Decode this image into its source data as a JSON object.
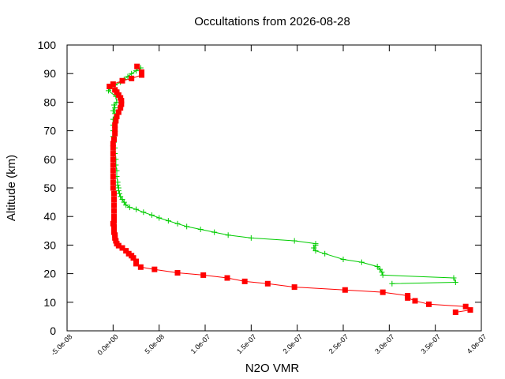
{
  "chart_data": {
    "type": "line",
    "title": "Occultations from 2026-08-28",
    "xlabel": "N2O VMR",
    "ylabel": "Altitude (km)",
    "xlim": [
      -5e-08,
      4e-07
    ],
    "ylim": [
      0,
      100
    ],
    "grid": false,
    "legend": "none",
    "x_ticks": [
      {
        "value": -5e-08,
        "label": "-5.0e-08"
      },
      {
        "value": 0,
        "label": "0.0e+00"
      },
      {
        "value": 5e-08,
        "label": "5.0e-08"
      },
      {
        "value": 1e-07,
        "label": "1.0e-07"
      },
      {
        "value": 1.5e-07,
        "label": "1.5e-07"
      },
      {
        "value": 2e-07,
        "label": "2.0e-07"
      },
      {
        "value": 2.5e-07,
        "label": "2.5e-07"
      },
      {
        "value": 3e-07,
        "label": "3.0e-07"
      },
      {
        "value": 3.5e-07,
        "label": "3.5e-07"
      },
      {
        "value": 4e-07,
        "label": "4.0e-07"
      }
    ],
    "y_ticks": [
      {
        "value": 0,
        "label": "0"
      },
      {
        "value": 10,
        "label": "10"
      },
      {
        "value": 20,
        "label": "20"
      },
      {
        "value": 30,
        "label": "30"
      },
      {
        "value": 40,
        "label": "40"
      },
      {
        "value": 50,
        "label": "50"
      },
      {
        "value": 60,
        "label": "60"
      },
      {
        "value": 70,
        "label": "70"
      },
      {
        "value": 80,
        "label": "80"
      },
      {
        "value": 90,
        "label": "90"
      },
      {
        "value": 100,
        "label": "100"
      }
    ],
    "series": [
      {
        "color": "#00cc00",
        "marker": "plus",
        "points": [
          [
            3.03e-07,
            16.5
          ],
          [
            3.72e-07,
            17.0
          ],
          [
            3.7e-07,
            18.5
          ],
          [
            2.93e-07,
            19.5
          ],
          [
            2.92e-07,
            20.5
          ],
          [
            2.9e-07,
            21.5
          ],
          [
            2.87e-07,
            22.5
          ],
          [
            2.7e-07,
            24.0
          ],
          [
            2.5e-07,
            25.0
          ],
          [
            2.3e-07,
            27.0
          ],
          [
            2.2e-07,
            28.0
          ],
          [
            2.18e-07,
            29.0
          ],
          [
            2.2e-07,
            30.0
          ],
          [
            2.2e-07,
            30.5
          ],
          [
            1.97e-07,
            31.5
          ],
          [
            1.5e-07,
            32.5
          ],
          [
            1.25e-07,
            33.5
          ],
          [
            1.1e-07,
            34.5
          ],
          [
            9.5e-08,
            35.5
          ],
          [
            8e-08,
            36.5
          ],
          [
            7e-08,
            37.5
          ],
          [
            6e-08,
            38.5
          ],
          [
            5e-08,
            39.5
          ],
          [
            4.2e-08,
            40.5
          ],
          [
            3.3e-08,
            41.5
          ],
          [
            2.5e-08,
            42.5
          ],
          [
            1.8e-08,
            43.2
          ],
          [
            1.4e-08,
            44.0
          ],
          [
            1.2e-08,
            45.0
          ],
          [
            1e-08,
            46.0
          ],
          [
            8e-09,
            47.0
          ],
          [
            7e-09,
            48.0
          ],
          [
            6e-09,
            49.0
          ],
          [
            6e-09,
            50.0
          ],
          [
            5e-09,
            51.0
          ],
          [
            5e-09,
            52.0
          ],
          [
            4e-09,
            54.0
          ],
          [
            4e-09,
            56.0
          ],
          [
            3e-09,
            58.0
          ],
          [
            3e-09,
            60.0
          ],
          [
            2e-09,
            62.0
          ],
          [
            2e-09,
            64.0
          ],
          [
            1e-09,
            66.0
          ],
          [
            0,
            68.0
          ],
          [
            0,
            70.0
          ],
          [
            0,
            72.0
          ],
          [
            0,
            74.0
          ],
          [
            2e-09,
            76.0
          ],
          [
            0,
            77.0
          ],
          [
            2e-09,
            78.0
          ],
          [
            1e-09,
            79.0
          ],
          [
            4e-09,
            80.0
          ],
          [
            3e-09,
            82.0
          ],
          [
            -5e-09,
            84.0
          ],
          [
            -3e-09,
            85.0
          ],
          [
            2e-09,
            86.0
          ],
          [
            8e-09,
            87.0
          ],
          [
            1.2e-08,
            88.0
          ],
          [
            1.6e-08,
            89.0
          ],
          [
            2e-08,
            90.0
          ],
          [
            2.5e-08,
            91.0
          ],
          [
            3e-08,
            92.0
          ]
        ]
      },
      {
        "color": "#ff0000",
        "marker": "square",
        "points": [
          [
            3.72e-07,
            6.5
          ],
          [
            3.88e-07,
            7.3
          ],
          [
            3.83e-07,
            8.5
          ],
          [
            3.43e-07,
            9.3
          ],
          [
            3.28e-07,
            10.5
          ],
          [
            3.2e-07,
            11.5
          ],
          [
            3.2e-07,
            12.3
          ],
          [
            2.93e-07,
            13.5
          ],
          [
            2.52e-07,
            14.3
          ],
          [
            1.97e-07,
            15.3
          ],
          [
            1.68e-07,
            16.5
          ],
          [
            1.43e-07,
            17.3
          ],
          [
            1.24e-07,
            18.5
          ],
          [
            9.8e-08,
            19.5
          ],
          [
            7e-08,
            20.3
          ],
          [
            4.5e-08,
            21.5
          ],
          [
            3e-08,
            22.3
          ],
          [
            2.5e-08,
            23.5
          ],
          [
            2.5e-08,
            24.3
          ],
          [
            2.2e-08,
            25.5
          ],
          [
            2e-08,
            26.3
          ],
          [
            1.7e-08,
            27.0
          ],
          [
            1.4e-08,
            28.0
          ],
          [
            1e-08,
            29.0
          ],
          [
            6e-09,
            29.8
          ],
          [
            4e-09,
            30.5
          ],
          [
            3e-09,
            31.5
          ],
          [
            2e-09,
            32.5
          ],
          [
            2e-09,
            33.5
          ],
          [
            1e-09,
            34.5
          ],
          [
            1e-09,
            35.5
          ],
          [
            1e-09,
            36.5
          ],
          [
            0,
            37.5
          ],
          [
            1e-09,
            38.5
          ],
          [
            1e-09,
            40.0
          ],
          [
            1e-09,
            42.0
          ],
          [
            1e-09,
            44.0
          ],
          [
            1e-09,
            46.0
          ],
          [
            1e-09,
            48.0
          ],
          [
            0,
            50.0
          ],
          [
            0,
            52.0
          ],
          [
            0,
            54.0
          ],
          [
            0,
            56.0
          ],
          [
            0,
            58.0
          ],
          [
            0,
            60.0
          ],
          [
            0,
            62.0
          ],
          [
            0,
            64.0
          ],
          [
            0,
            65.5
          ],
          [
            1e-09,
            67.0
          ],
          [
            2e-09,
            69.0
          ],
          [
            2e-09,
            70.5
          ],
          [
            2e-09,
            72.0
          ],
          [
            3e-09,
            73.5
          ],
          [
            4e-09,
            75.0
          ],
          [
            6e-09,
            76.5
          ],
          [
            8e-09,
            78.0
          ],
          [
            9e-09,
            79.3
          ],
          [
            9e-09,
            80.5
          ],
          [
            8e-09,
            81.5
          ],
          [
            6e-09,
            82.5
          ],
          [
            4e-09,
            83.5
          ],
          [
            2e-09,
            84.3
          ],
          [
            -4e-09,
            85.5
          ],
          [
            0,
            86.3
          ],
          [
            1e-08,
            87.5
          ],
          [
            2e-08,
            88.3
          ],
          [
            3.1e-08,
            89.5
          ],
          [
            3.1e-08,
            90.5
          ],
          [
            2.6e-08,
            92.5
          ]
        ]
      }
    ]
  }
}
